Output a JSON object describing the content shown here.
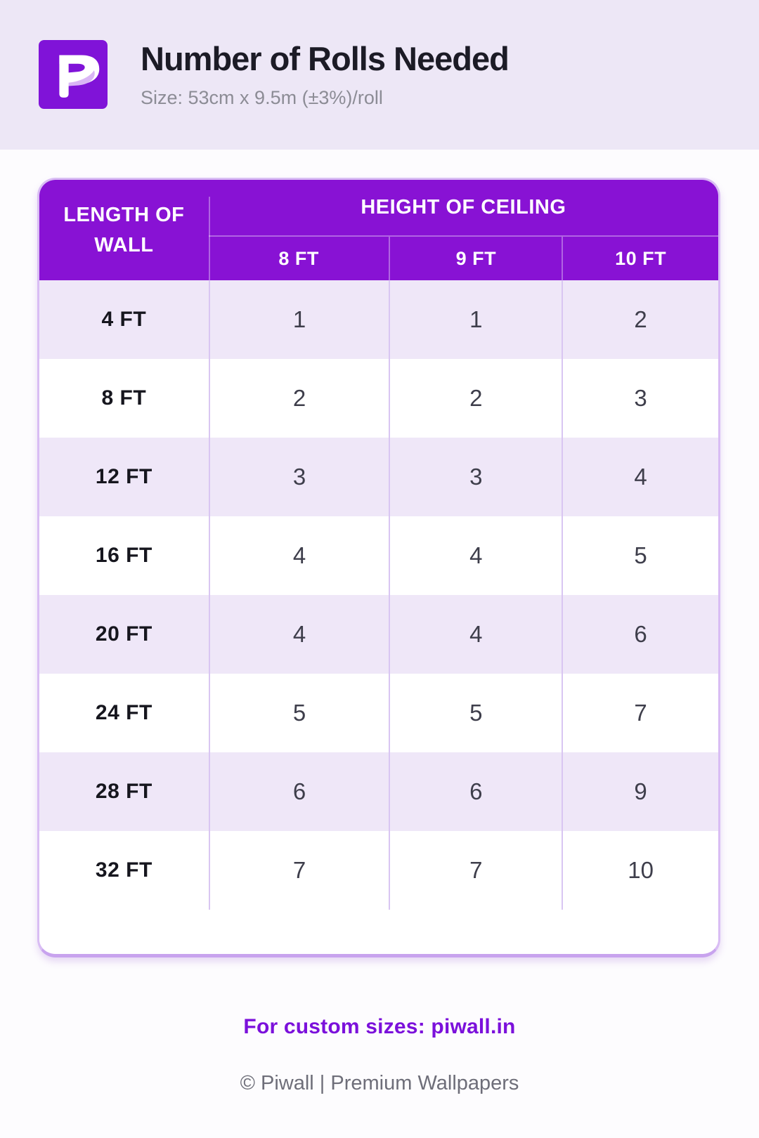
{
  "header": {
    "logo_icon": "piwall-logo-icon",
    "title": "Number of Rolls Needed",
    "subtitle": "Size: 53cm x 9.5m (±3%)/roll"
  },
  "chart_data": {
    "type": "table",
    "title": "Number of Rolls Needed",
    "subtitle": "Size: 53cm x 9.5m (±3%)/roll",
    "row_axis_label": "LENGTH OF WALL",
    "column_group_label": "HEIGHT OF CEILING",
    "columns": [
      "8 FT",
      "9 FT",
      "10 FT"
    ],
    "rows": [
      {
        "label": "4 FT",
        "values": [
          1,
          1,
          2
        ]
      },
      {
        "label": "8 FT",
        "values": [
          2,
          2,
          3
        ]
      },
      {
        "label": "12 FT",
        "values": [
          3,
          3,
          4
        ]
      },
      {
        "label": "16 FT",
        "values": [
          4,
          4,
          5
        ]
      },
      {
        "label": "20 FT",
        "values": [
          4,
          4,
          6
        ]
      },
      {
        "label": "24 FT",
        "values": [
          5,
          5,
          7
        ]
      },
      {
        "label": "28 FT",
        "values": [
          6,
          6,
          9
        ]
      },
      {
        "label": "32 FT",
        "values": [
          7,
          7,
          10
        ]
      }
    ]
  },
  "footer": {
    "custom_sizes_text": "For custom sizes: piwall.in",
    "copyright": "© Piwall | Premium Wallpapers"
  },
  "colors": {
    "header_purple": "#8812d4",
    "logo_purple": "#8013d8",
    "logo_swoosh_lavender": "#d9b5f5",
    "row_lavender": "#efe7f8",
    "band_lavender": "#ede7f6",
    "card_border": "#d9bdf4",
    "link_purple": "#7b10db",
    "title_dark": "#1c1b26",
    "value_gray": "#3e3e4b"
  }
}
